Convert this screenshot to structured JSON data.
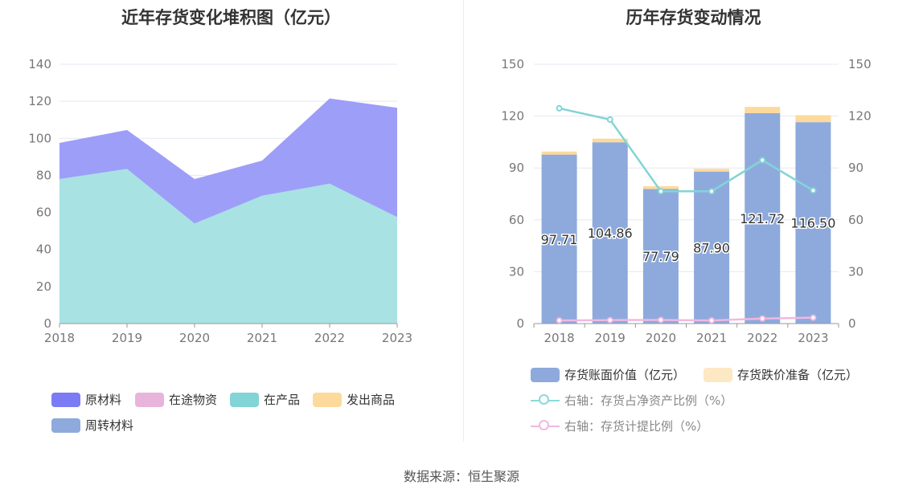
{
  "left": {
    "title": "近年存货变化堆积图（亿元）",
    "legend": [
      {
        "label": "原材料",
        "color": "#7b7bf5"
      },
      {
        "label": "在途物资",
        "color": "#e8b4dc"
      },
      {
        "label": "在产品",
        "color": "#82d4d6"
      },
      {
        "label": "发出商品",
        "color": "#fdd99b"
      },
      {
        "label": "周转材料",
        "color": "#8eaadc"
      }
    ]
  },
  "right": {
    "title": "历年存货变动情况",
    "legend": [
      {
        "label": "存货账面价值（亿元）",
        "color": "#8eaadc",
        "kind": "bar"
      },
      {
        "label": "存货跌价准备（亿元）",
        "color": "#fde8c4",
        "kind": "bar"
      },
      {
        "label": "右轴：存货占净资产比例（%）",
        "color": "#8ed8d8",
        "kind": "line"
      },
      {
        "label": "右轴：存货计提比例（%）",
        "color": "#f0b8e0",
        "kind": "line"
      }
    ]
  },
  "source": "数据来源：恒生聚源",
  "chart_data": [
    {
      "type": "area",
      "title": "近年存货变化堆积图（亿元）",
      "x": [
        "2018",
        "2019",
        "2020",
        "2021",
        "2022",
        "2023"
      ],
      "ylim": [
        0,
        140
      ],
      "yticks": [
        0,
        20,
        40,
        60,
        80,
        100,
        120,
        140
      ],
      "stacked": true,
      "series": [
        {
          "name": "在产品",
          "color": "#a8e2e3",
          "values": [
            78,
            83.5,
            54,
            69,
            75.5,
            57.5
          ]
        },
        {
          "name": "原材料",
          "color": "#9d9ef8",
          "values": [
            19.5,
            21,
            24,
            19,
            46,
            59
          ]
        }
      ],
      "grid": true,
      "legend_position": "bottom"
    },
    {
      "type": "bar",
      "title": "历年存货变动情况",
      "categories": [
        "2018",
        "2019",
        "2020",
        "2021",
        "2022",
        "2023"
      ],
      "ylim": [
        0,
        150
      ],
      "yticks": [
        0,
        30,
        60,
        90,
        120,
        150
      ],
      "y2lim": [
        0,
        150
      ],
      "y2ticks": [
        0,
        30,
        60,
        90,
        120,
        150
      ],
      "stacked": true,
      "series": [
        {
          "name": "存货账面价值（亿元）",
          "color": "#8eaadc",
          "values": [
            97.71,
            104.86,
            77.79,
            87.9,
            121.72,
            116.5
          ],
          "labels": [
            "97.71",
            "104.86",
            "77.79",
            "87.90",
            "121.72",
            "116.50"
          ]
        },
        {
          "name": "存货跌价准备（亿元）",
          "color": "#fdd99b",
          "values": [
            1.8,
            2.1,
            1.7,
            1.6,
            3.6,
            4.0
          ]
        }
      ],
      "line_series": [
        {
          "name": "右轴：存货占净资产比例（%）",
          "color": "#82d4d6",
          "axis": "right",
          "values": [
            124.5,
            118,
            76.5,
            76.5,
            94.5,
            77
          ]
        },
        {
          "name": "右轴：存货计提比例（%）",
          "color": "#f0b8e0",
          "axis": "right",
          "values": [
            1.8,
            2.0,
            2.1,
            1.8,
            2.9,
            3.4
          ]
        }
      ],
      "grid": true,
      "legend_position": "bottom"
    }
  ]
}
